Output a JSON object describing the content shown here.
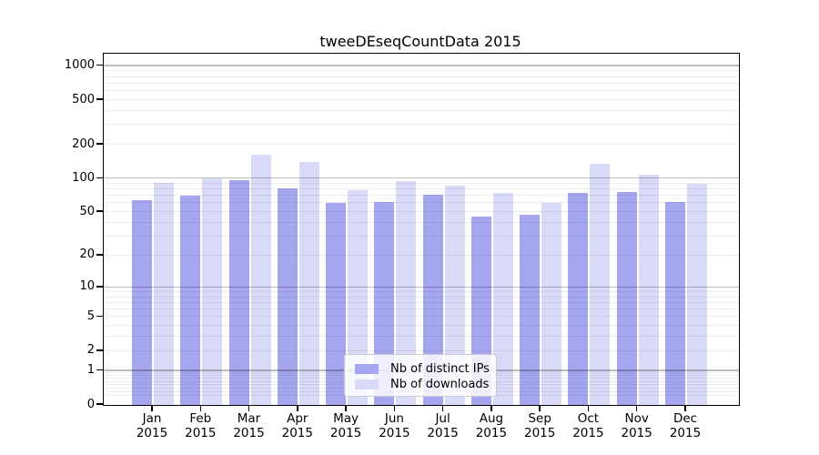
{
  "title": "tweeDEseqCountData 2015",
  "chart_data": {
    "type": "bar",
    "title": "tweeDEseqCountData 2015",
    "categories": [
      "Jan 2015",
      "Feb 2015",
      "Mar 2015",
      "Apr 2015",
      "May 2015",
      "Jun 2015",
      "Jul 2015",
      "Aug 2015",
      "Sep 2015",
      "Oct 2015",
      "Nov 2015",
      "Dec 2015"
    ],
    "x_tick_line1": [
      "Jan",
      "Feb",
      "Mar",
      "Apr",
      "May",
      "Jun",
      "Jul",
      "Aug",
      "Sep",
      "Oct",
      "Nov",
      "Dec"
    ],
    "x_tick_line2": "2015",
    "series": [
      {
        "name": "Nb of distinct IPs",
        "color": "#a5a5f0",
        "values": [
          64,
          70,
          96,
          82,
          61,
          62,
          72,
          46,
          47,
          75,
          76,
          62
        ]
      },
      {
        "name": "Nb of downloads",
        "color": "#d9d9f8",
        "values": [
          92,
          100,
          165,
          140,
          79,
          95,
          87,
          74,
          61,
          135,
          108,
          90
        ]
      }
    ],
    "xlabel": "",
    "ylabel": "",
    "y_axis": {
      "scale": "log1p",
      "tick_labels": [
        0,
        1,
        2,
        5,
        10,
        20,
        50,
        100,
        200,
        500,
        1000
      ],
      "major_ticks": [
        1,
        10,
        100,
        1000
      ],
      "ylim": [
        0,
        1280
      ]
    },
    "grid": true,
    "legend": {
      "position": "inside-bottom-center",
      "entries": [
        "Nb of distinct IPs",
        "Nb of downloads"
      ]
    },
    "colors": {
      "bar_distinct_ips": "#a5a5f0",
      "bar_downloads": "#d9d9f8",
      "major_grid": "#bdbdbd",
      "minor_grid": "#ededed",
      "axis": "#000000",
      "background": "#ffffff"
    }
  }
}
